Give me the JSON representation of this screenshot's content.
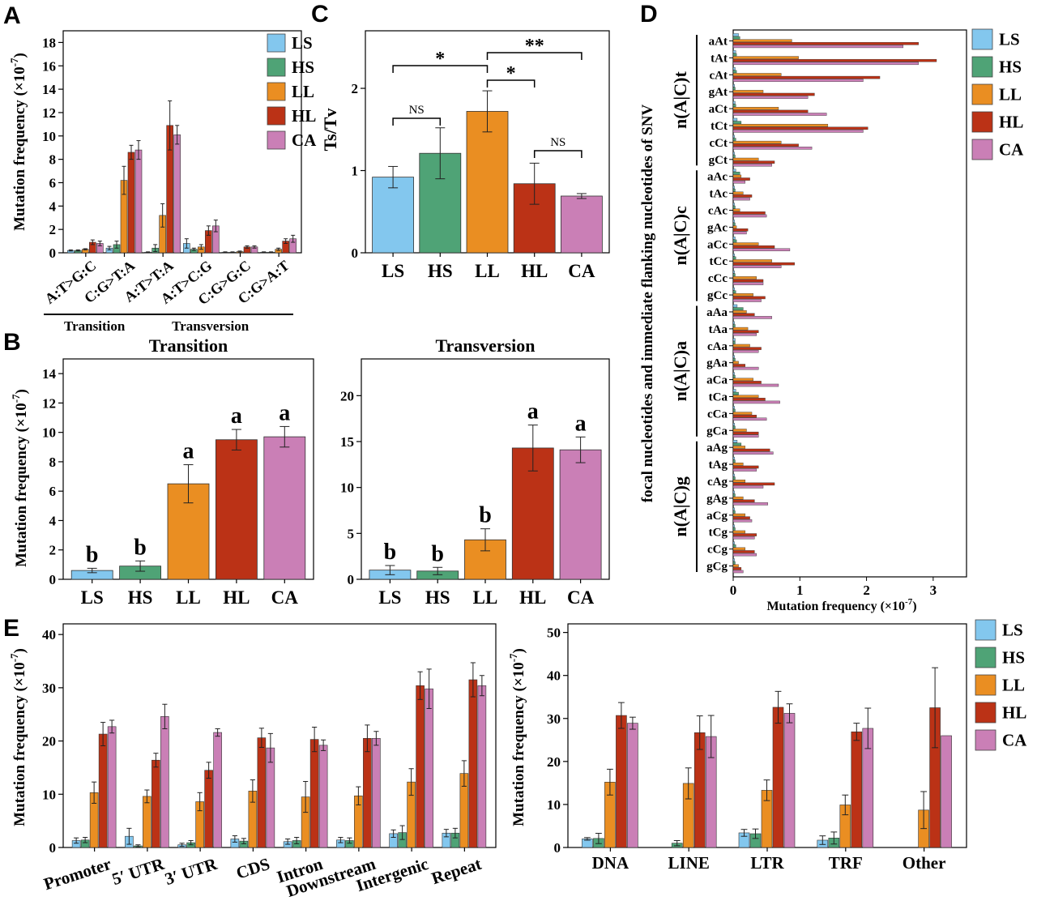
{
  "colors": {
    "LS": "#83c7ee",
    "HS": "#4fa376",
    "LL": "#ea8e22",
    "HL": "#bb3216",
    "CA": "#ca7fb6"
  },
  "panel_labels": [
    "A",
    "B",
    "C",
    "D",
    "E"
  ],
  "chart_data": [
    {
      "id": "A",
      "type": "bar",
      "ylabel": "Mutation frequency (×10",
      "ylabel_exp": "-7",
      "ylim": [
        0,
        19
      ],
      "yticks": [
        0,
        2,
        4,
        6,
        8,
        10,
        12,
        14,
        16,
        18
      ],
      "categories": [
        "A:T>G:C",
        "C:G>T:A",
        "A:T>T:A",
        "A:T>C:G",
        "C:G>G:C",
        "C:G>A:T"
      ],
      "groups": [
        {
          "label": "Transition",
          "from": 0,
          "to": 1
        },
        {
          "label": "Transversion",
          "from": 2,
          "to": 5
        }
      ],
      "series": [
        {
          "name": "LS",
          "values": [
            0.2,
            0.4,
            0.05,
            0.8,
            0.05,
            0.05
          ],
          "err": [
            0.05,
            0.15,
            0.03,
            0.4,
            0.03,
            0.03
          ]
        },
        {
          "name": "HS",
          "values": [
            0.2,
            0.7,
            0.4,
            0.3,
            0.05,
            0.05
          ],
          "err": [
            0.05,
            0.3,
            0.3,
            0.1,
            0.03,
            0.03
          ]
        },
        {
          "name": "LL",
          "values": [
            0.3,
            6.2,
            3.2,
            0.5,
            0.1,
            0.3
          ],
          "err": [
            0.05,
            1.2,
            1.0,
            0.2,
            0.05,
            0.1
          ]
        },
        {
          "name": "HL",
          "values": [
            0.9,
            8.6,
            10.9,
            1.9,
            0.5,
            1.0
          ],
          "err": [
            0.2,
            0.6,
            2.1,
            0.4,
            0.1,
            0.2
          ]
        },
        {
          "name": "CA",
          "values": [
            0.8,
            8.8,
            10.1,
            2.3,
            0.5,
            1.2
          ],
          "err": [
            0.2,
            0.8,
            0.8,
            0.5,
            0.1,
            0.3
          ]
        }
      ],
      "legend": [
        "LS",
        "HS",
        "LL",
        "HL",
        "CA"
      ]
    },
    {
      "id": "B1",
      "type": "bar",
      "title": "Transition",
      "ylabel": "Mutation  frequency (×10",
      "ylabel_exp": "-7",
      "ylim": [
        0,
        15
      ],
      "yticks": [
        0,
        2,
        4,
        6,
        8,
        10,
        12,
        14
      ],
      "categories": [
        "LS",
        "HS",
        "LL",
        "HL",
        "CA"
      ],
      "values": [
        0.6,
        0.9,
        6.5,
        9.5,
        9.7
      ],
      "err": [
        0.15,
        0.35,
        1.3,
        0.7,
        0.7
      ],
      "letters": [
        "b",
        "b",
        "a",
        "a",
        "a"
      ]
    },
    {
      "id": "B2",
      "type": "bar",
      "title": "Transversion",
      "ylim": [
        0,
        24
      ],
      "yticks": [
        0,
        5,
        10,
        15,
        20
      ],
      "categories": [
        "LS",
        "HS",
        "LL",
        "HL",
        "CA"
      ],
      "values": [
        1.0,
        0.9,
        4.3,
        14.3,
        14.1
      ],
      "err": [
        0.5,
        0.4,
        1.2,
        2.5,
        1.4
      ],
      "letters": [
        "b",
        "b",
        "b",
        "a",
        "a"
      ]
    },
    {
      "id": "C",
      "type": "bar",
      "ylabel": "Ts/Tv",
      "ylim": [
        0,
        2.7
      ],
      "yticks": [
        0,
        1,
        2
      ],
      "categories": [
        "LS",
        "HS",
        "LL",
        "HL",
        "CA"
      ],
      "values": [
        0.92,
        1.21,
        1.72,
        0.84,
        0.69
      ],
      "err": [
        0.13,
        0.31,
        0.25,
        0.25,
        0.03
      ],
      "brackets": [
        {
          "from": 0,
          "to": 1,
          "label": "NS"
        },
        {
          "from": 3,
          "to": 4,
          "label": "NS"
        },
        {
          "from": 2,
          "to": 3,
          "label": "*"
        },
        {
          "from": 0,
          "to": 2,
          "label": "*"
        },
        {
          "from": 2,
          "to": 4,
          "label": "**"
        }
      ]
    },
    {
      "id": "D",
      "type": "bar",
      "orientation": "horizontal",
      "xlabel": "Mutation frequency (×10",
      "xlabel_exp": "-7",
      "ylabel": "focal nucleotides and immediate flanking nucleotides of SNV",
      "xlim": [
        0,
        3.5
      ],
      "xticks": [
        0,
        1,
        2,
        3
      ],
      "groups": [
        "n(A|C)t",
        "n(A|C)c",
        "n(A|C)a",
        "n(A|C)g"
      ],
      "categories": [
        "aAt",
        "tAt",
        "cAt",
        "gAt",
        "aCt",
        "tCt",
        "cCt",
        "gCt",
        "aAc",
        "tAc",
        "cAc",
        "gAc",
        "aCc",
        "tCc",
        "cCc",
        "gCc",
        "aAa",
        "tAa",
        "cAa",
        "gAa",
        "aCa",
        "tCa",
        "cCa",
        "gCa",
        "aAg",
        "tAg",
        "cAg",
        "gAg",
        "aCg",
        "tCg",
        "cCg",
        "gCg"
      ],
      "series": [
        {
          "name": "LS",
          "values": [
            0.08,
            0.04,
            0.03,
            0.02,
            0.03,
            0.06,
            0.02,
            0.02,
            0.04,
            0.02,
            0.02,
            0.02,
            0.03,
            0.02,
            0.02,
            0.02,
            0.06,
            0.02,
            0.03,
            0.02,
            0.02,
            0.04,
            0.02,
            0.02,
            0.06,
            0.02,
            0.02,
            0.02,
            0.02,
            0.02,
            0.02,
            0.02
          ]
        },
        {
          "name": "HS",
          "values": [
            0.1,
            0.05,
            0.05,
            0.03,
            0.04,
            0.12,
            0.04,
            0.03,
            0.1,
            0.03,
            0.03,
            0.03,
            0.05,
            0.04,
            0.03,
            0.04,
            0.15,
            0.03,
            0.03,
            0.03,
            0.03,
            0.08,
            0.03,
            0.03,
            0.12,
            0.03,
            0.03,
            0.03,
            0.03,
            0.03,
            0.04,
            0.03
          ]
        },
        {
          "name": "LL",
          "values": [
            0.88,
            0.98,
            0.72,
            0.45,
            0.68,
            1.42,
            0.72,
            0.38,
            0.12,
            0.15,
            0.1,
            0.05,
            0.38,
            0.58,
            0.35,
            0.3,
            0.2,
            0.22,
            0.25,
            0.08,
            0.3,
            0.38,
            0.28,
            0.2,
            0.18,
            0.15,
            0.18,
            0.15,
            0.18,
            0.18,
            0.18,
            0.08
          ]
        },
        {
          "name": "HL",
          "values": [
            2.78,
            3.05,
            2.2,
            1.22,
            1.12,
            2.02,
            0.98,
            0.62,
            0.25,
            0.28,
            0.48,
            0.22,
            0.62,
            0.92,
            0.45,
            0.48,
            0.32,
            0.38,
            0.42,
            0.18,
            0.42,
            0.48,
            0.35,
            0.38,
            0.55,
            0.38,
            0.62,
            0.32,
            0.25,
            0.35,
            0.32,
            0.12
          ]
        },
        {
          "name": "CA",
          "values": [
            2.55,
            2.78,
            1.95,
            1.12,
            1.4,
            1.95,
            1.18,
            0.58,
            0.18,
            0.25,
            0.5,
            0.2,
            0.85,
            0.72,
            0.45,
            0.42,
            0.58,
            0.35,
            0.38,
            0.38,
            0.68,
            0.7,
            0.5,
            0.38,
            0.6,
            0.35,
            0.45,
            0.52,
            0.28,
            0.32,
            0.35,
            0.15
          ]
        }
      ],
      "legend": [
        "LS",
        "HS",
        "LL",
        "HL",
        "CA"
      ]
    },
    {
      "id": "E1",
      "type": "bar",
      "ylabel": "Mutation  frequency (×10",
      "ylabel_exp": "-7",
      "ylim": [
        0,
        42
      ],
      "yticks": [
        0,
        10,
        20,
        30,
        40
      ],
      "categories": [
        "Promoter",
        "5′ UTR",
        "3′ UTR",
        "CDS",
        "Intron",
        "Downstream",
        "Intergenic",
        "Repeat"
      ],
      "series": [
        {
          "name": "LS",
          "values": [
            1.3,
            2.1,
            0.5,
            1.6,
            1.1,
            1.4,
            2.6,
            2.7
          ],
          "err": [
            0.5,
            1.5,
            0.3,
            0.6,
            0.5,
            0.5,
            0.7,
            0.7
          ]
        },
        {
          "name": "HS",
          "values": [
            1.4,
            0.3,
            0.9,
            1.2,
            1.3,
            1.3,
            2.8,
            2.7
          ],
          "err": [
            0.5,
            0.2,
            0.4,
            0.5,
            0.6,
            0.5,
            1.3,
            0.9
          ]
        },
        {
          "name": "LL",
          "values": [
            10.3,
            9.6,
            8.6,
            10.6,
            9.5,
            9.7,
            12.3,
            13.9
          ],
          "err": [
            2.0,
            1.2,
            1.7,
            2.1,
            2.9,
            1.7,
            2.5,
            2.4
          ]
        },
        {
          "name": "HL",
          "values": [
            21.3,
            16.4,
            14.5,
            20.6,
            20.3,
            20.5,
            30.4,
            31.5
          ],
          "err": [
            2.2,
            1.3,
            1.5,
            1.8,
            2.3,
            2.5,
            2.6,
            3.2
          ]
        },
        {
          "name": "CA",
          "values": [
            22.7,
            24.6,
            21.6,
            18.7,
            19.2,
            20.5,
            29.8,
            30.4
          ],
          "err": [
            1.2,
            2.3,
            0.7,
            2.7,
            1.0,
            1.3,
            3.7,
            1.9
          ]
        }
      ]
    },
    {
      "id": "E2",
      "type": "bar",
      "ylabel": "Mutation  frequency (×10",
      "ylabel_exp": "-7",
      "ylim": [
        0,
        52
      ],
      "yticks": [
        0,
        10,
        20,
        30,
        40,
        50
      ],
      "categories": [
        "DNA",
        "LINE",
        "LTR",
        "TRF",
        "Other"
      ],
      "series": [
        {
          "name": "LS",
          "values": [
            2.0,
            0,
            3.4,
            1.7,
            0
          ],
          "err": [
            0.3,
            0,
            0.8,
            1.0,
            0
          ]
        },
        {
          "name": "HS",
          "values": [
            2.1,
            1.0,
            3.2,
            2.2,
            0
          ],
          "err": [
            1.2,
            0.6,
            1.1,
            1.4,
            0
          ]
        },
        {
          "name": "LL",
          "values": [
            15.2,
            14.9,
            13.3,
            9.9,
            8.7
          ],
          "err": [
            3.0,
            3.6,
            2.4,
            2.3,
            4.3
          ]
        },
        {
          "name": "HL",
          "values": [
            30.7,
            26.7,
            32.6,
            26.9,
            32.5
          ],
          "err": [
            3.0,
            3.9,
            3.7,
            2.0,
            9.3
          ]
        },
        {
          "name": "CA",
          "values": [
            28.9,
            25.8,
            31.2,
            27.7,
            26.0
          ],
          "err": [
            1.4,
            4.9,
            2.2,
            4.7,
            0
          ]
        }
      ],
      "legend": [
        "LS",
        "HS",
        "LL",
        "HL",
        "CA"
      ]
    }
  ]
}
